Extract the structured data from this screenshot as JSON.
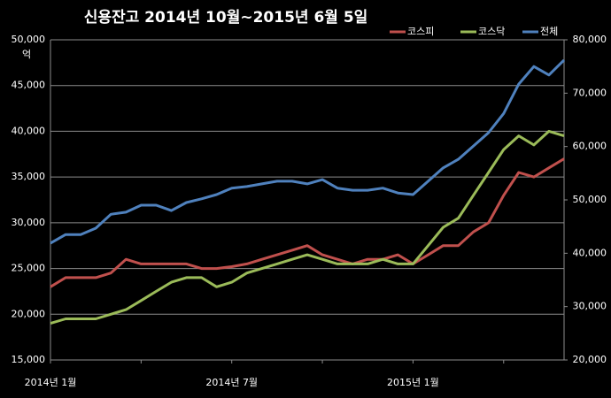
{
  "chart_data": {
    "type": "line",
    "title": "신용잔고 2014년 10월~2015년 6월 5일",
    "y_unit": "억",
    "categories": [
      "2014년 1월",
      null,
      null,
      null,
      null,
      null,
      null,
      null,
      null,
      null,
      null,
      null,
      "2014년 7월",
      null,
      null,
      null,
      null,
      null,
      null,
      null,
      null,
      null,
      null,
      null,
      "2015년 1월",
      null,
      null,
      null,
      null,
      null,
      null,
      null,
      null,
      null,
      null
    ],
    "series": [
      {
        "name": "코스피",
        "color": "#c0504d",
        "axis": "y",
        "values": [
          23000,
          24000,
          24000,
          24000,
          24500,
          26000,
          25500,
          25500,
          25500,
          25500,
          25000,
          25000,
          25200,
          25500,
          26000,
          26500,
          27000,
          27500,
          26500,
          26000,
          25500,
          26000,
          26000,
          26500,
          25500,
          26500,
          27500,
          27500,
          29000,
          30000,
          33000,
          35500,
          35000,
          36000,
          37000
        ]
      },
      {
        "name": "코스닥",
        "color": "#9bbb59",
        "axis": "y",
        "values": [
          19000,
          19500,
          19500,
          19500,
          20000,
          20500,
          21500,
          22500,
          23500,
          24000,
          24000,
          23000,
          23500,
          24500,
          25000,
          25500,
          26000,
          26500,
          26000,
          25500,
          25500,
          25500,
          26000,
          25500,
          25500,
          27500,
          29500,
          30500,
          33000,
          35500,
          38000,
          39500,
          38500,
          40000,
          39500
        ]
      },
      {
        "name": "전체",
        "color": "#4f81bd",
        "axis": "y2",
        "values": [
          41900,
          43500,
          43500,
          44700,
          47300,
          47700,
          49000,
          49000,
          48000,
          49500,
          50200,
          51000,
          52200,
          52500,
          53000,
          53500,
          53500,
          53000,
          53800,
          52200,
          51800,
          51800,
          52200,
          51300,
          51000,
          53500,
          56000,
          57600,
          60100,
          62600,
          66200,
          71700,
          75000,
          73400,
          76200
        ]
      }
    ],
    "ylim": [
      15000,
      50000
    ],
    "yticks": [
      {
        "value": 15000,
        "label": "15,000"
      },
      {
        "value": 20000,
        "label": "20,000"
      },
      {
        "value": 25000,
        "label": "25,000"
      },
      {
        "value": 30000,
        "label": "30,000"
      },
      {
        "value": 35000,
        "label": "35,000"
      },
      {
        "value": 40000,
        "label": "40,000"
      },
      {
        "value": 45000,
        "label": "45,000"
      },
      {
        "value": 50000,
        "label": "50,000"
      }
    ],
    "y2lim": [
      20000,
      80000
    ],
    "y2ticks": [
      {
        "value": 20000,
        "label": "20,000"
      },
      {
        "value": 30000,
        "label": "30,000"
      },
      {
        "value": 40000,
        "label": "40,000"
      },
      {
        "value": 50000,
        "label": "50,000"
      },
      {
        "value": 60000,
        "label": "60,000"
      },
      {
        "value": 70000,
        "label": "70,000"
      },
      {
        "value": 80000,
        "label": "80,000"
      }
    ],
    "grid": true
  }
}
